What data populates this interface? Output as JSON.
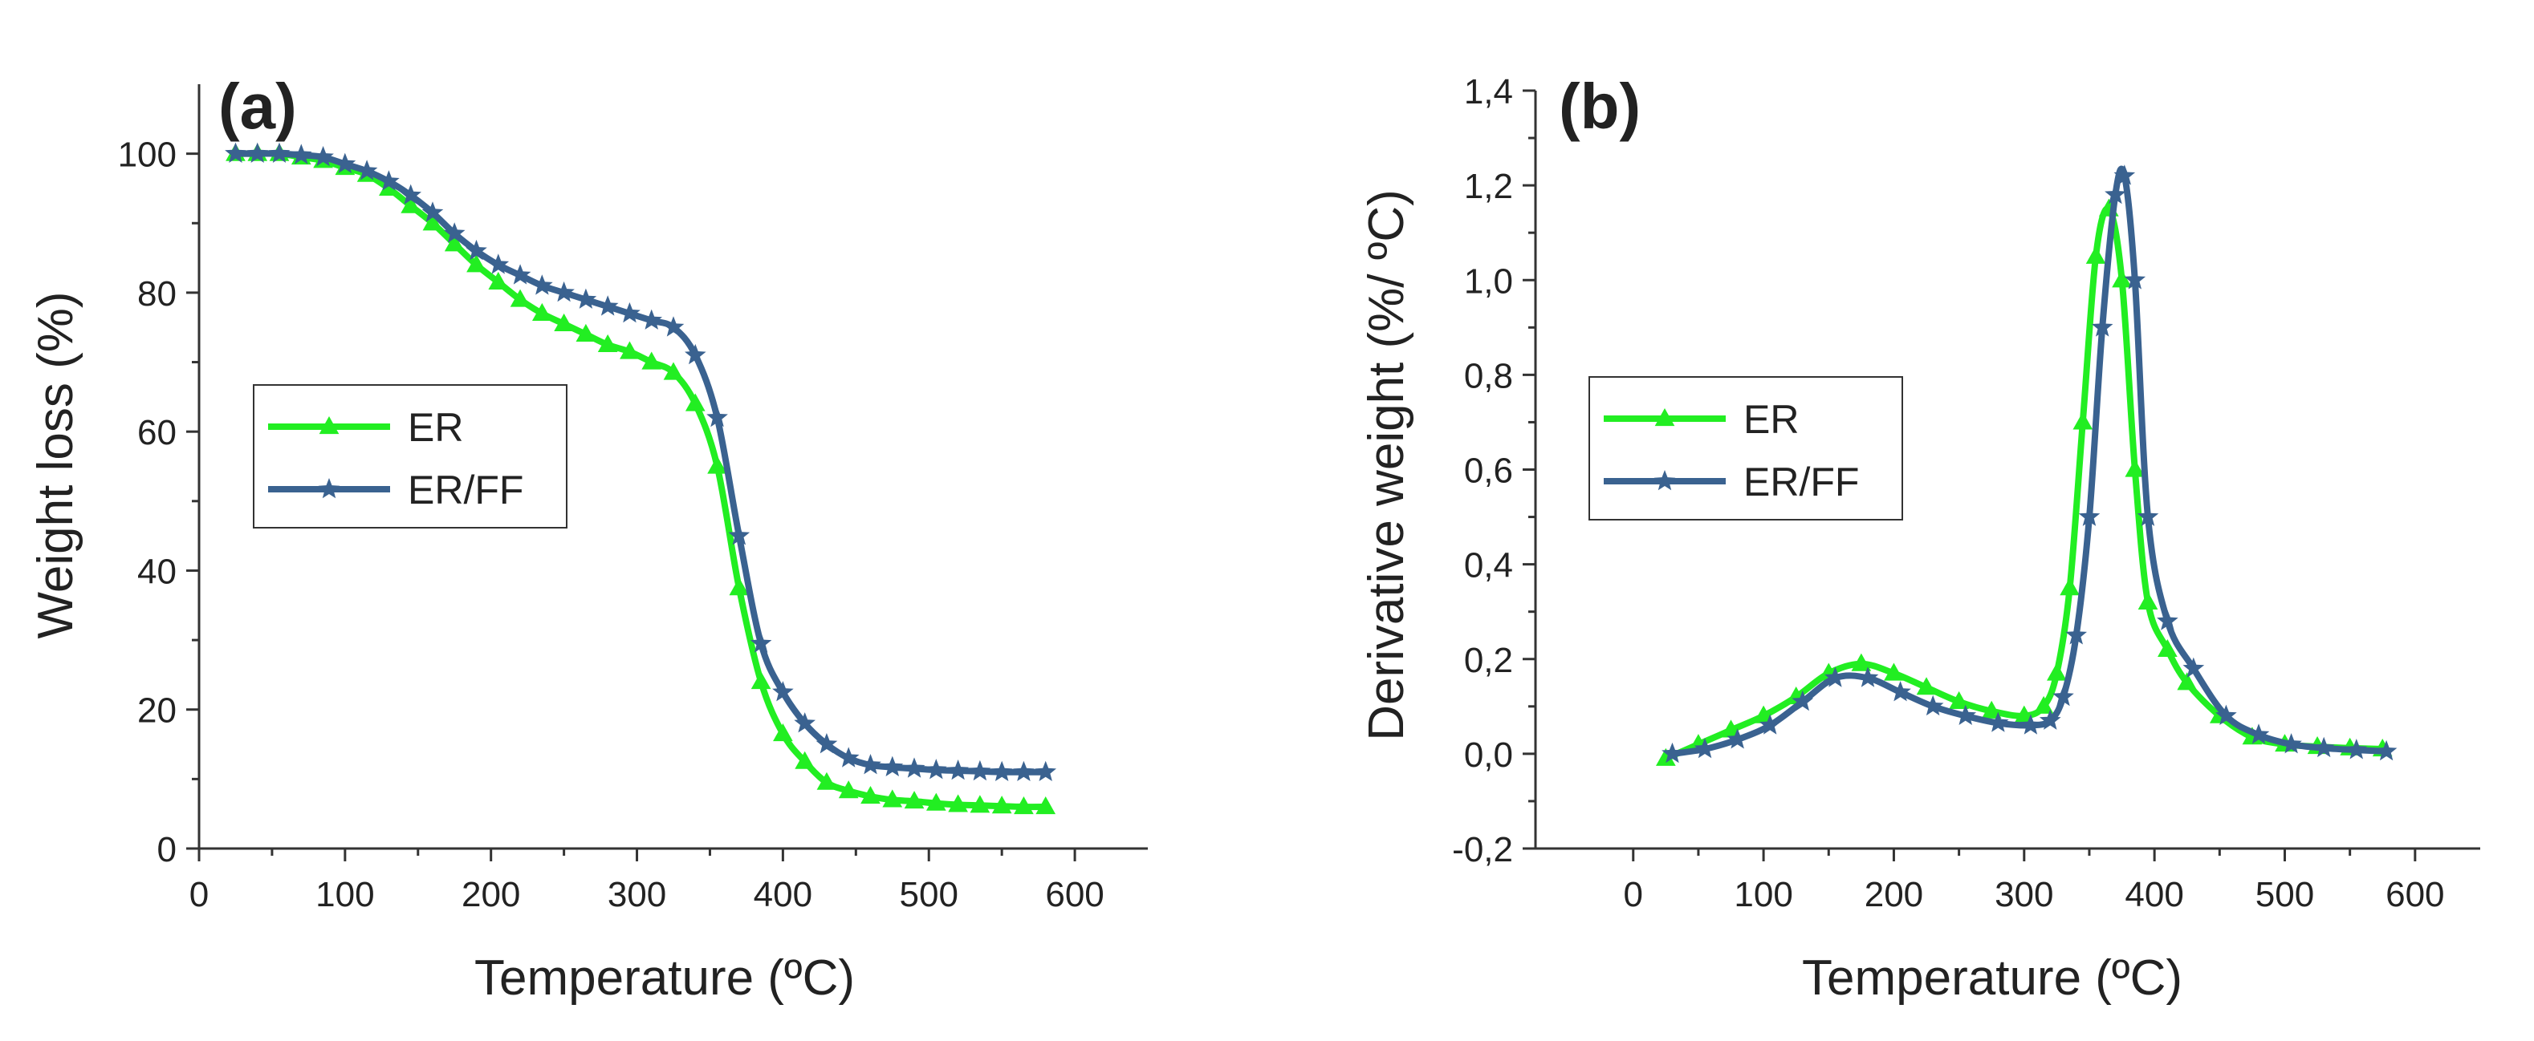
{
  "colors": {
    "ER": "#22ee22",
    "ER_FF": "#3a6290",
    "axis": "#333333"
  },
  "chart_data": [
    {
      "id": "a",
      "type": "line",
      "panel_label": "(a)",
      "xlabel": "Temperature (ºC)",
      "ylabel": "Weight loss (%)",
      "xlim": [
        0,
        650
      ],
      "ylim": [
        0,
        110
      ],
      "xticks": [
        0,
        100,
        200,
        300,
        400,
        500,
        600
      ],
      "yticks": [
        0,
        20,
        40,
        60,
        80,
        100
      ],
      "xtick_labels": [
        "0",
        "100",
        "200",
        "300",
        "400",
        "500",
        "600"
      ],
      "ytick_labels": [
        "0",
        "20",
        "40",
        "60",
        "80",
        "100"
      ],
      "legend_position": "center-left",
      "series": [
        {
          "name": "ER",
          "marker": "triangle",
          "color": "#22ee22",
          "x": [
            25,
            40,
            55,
            70,
            85,
            100,
            115,
            130,
            145,
            160,
            175,
            190,
            205,
            220,
            235,
            250,
            265,
            280,
            295,
            310,
            325,
            340,
            355,
            370,
            385,
            400,
            415,
            430,
            445,
            460,
            475,
            490,
            505,
            520,
            535,
            550,
            565,
            580
          ],
          "y": [
            100,
            100,
            100,
            99.5,
            99,
            98,
            97,
            95,
            92.5,
            90,
            87,
            84,
            81.5,
            79,
            77,
            75.5,
            74,
            72.5,
            71.5,
            70,
            68.5,
            64,
            55,
            37.5,
            24,
            16.5,
            12.5,
            9.5,
            8.3,
            7.5,
            7,
            6.8,
            6.5,
            6.3,
            6.2,
            6.1,
            6,
            6
          ]
        },
        {
          "name": "ER/FF",
          "marker": "star",
          "color": "#3a6290",
          "x": [
            25,
            40,
            55,
            70,
            85,
            100,
            115,
            130,
            145,
            160,
            175,
            190,
            205,
            220,
            235,
            250,
            265,
            280,
            295,
            310,
            325,
            340,
            355,
            370,
            385,
            400,
            415,
            430,
            445,
            460,
            475,
            490,
            505,
            520,
            535,
            550,
            565,
            580
          ],
          "y": [
            100,
            100,
            100,
            99.8,
            99.5,
            98.5,
            97.5,
            96,
            94,
            91.5,
            88.5,
            86,
            84,
            82.5,
            81,
            80,
            79,
            78,
            77,
            76,
            75,
            71,
            62,
            45,
            29.5,
            22.5,
            18,
            15,
            13,
            12,
            11.7,
            11.5,
            11.3,
            11.2,
            11.1,
            11,
            11,
            11
          ]
        }
      ]
    },
    {
      "id": "b",
      "type": "line",
      "panel_label": "(b)",
      "xlabel": "Temperature (ºC)",
      "ylabel": "Derivative weight (%/ ºC)",
      "xlim": [
        -75,
        650
      ],
      "ylim": [
        -0.2,
        1.4
      ],
      "xticks": [
        0,
        100,
        200,
        300,
        400,
        500,
        600
      ],
      "yticks": [
        -0.2,
        0,
        0.2,
        0.4,
        0.6,
        0.8,
        1.0,
        1.2,
        1.4
      ],
      "xtick_labels": [
        "0",
        "100",
        "200",
        "300",
        "400",
        "500",
        "600"
      ],
      "ytick_labels": [
        "-0,2",
        "0,0",
        "0,2",
        "0,4",
        "0,6",
        "0,8",
        "1,0",
        "1,2",
        "1,4"
      ],
      "legend_position": "center-left",
      "series": [
        {
          "name": "ER",
          "marker": "triangle",
          "color": "#22ee22",
          "x": [
            25,
            50,
            75,
            100,
            125,
            150,
            175,
            200,
            225,
            250,
            275,
            300,
            315,
            325,
            335,
            345,
            355,
            365,
            375,
            385,
            395,
            410,
            425,
            450,
            475,
            500,
            525,
            550,
            575
          ],
          "y": [
            -0.01,
            0.02,
            0.05,
            0.08,
            0.12,
            0.17,
            0.19,
            0.17,
            0.14,
            0.11,
            0.09,
            0.08,
            0.1,
            0.17,
            0.35,
            0.7,
            1.05,
            1.15,
            1.0,
            0.6,
            0.32,
            0.22,
            0.15,
            0.08,
            0.035,
            0.02,
            0.015,
            0.012,
            0.01
          ]
        },
        {
          "name": "ER/FF",
          "marker": "star",
          "color": "#3a6290",
          "x": [
            30,
            55,
            80,
            105,
            130,
            155,
            180,
            205,
            230,
            255,
            280,
            305,
            320,
            330,
            340,
            350,
            360,
            370,
            377,
            385,
            395,
            410,
            430,
            455,
            480,
            505,
            530,
            555,
            578
          ],
          "y": [
            0.0,
            0.01,
            0.03,
            0.06,
            0.11,
            0.16,
            0.16,
            0.13,
            0.1,
            0.08,
            0.065,
            0.06,
            0.07,
            0.12,
            0.25,
            0.5,
            0.9,
            1.18,
            1.22,
            1.0,
            0.5,
            0.28,
            0.18,
            0.08,
            0.04,
            0.02,
            0.012,
            0.008,
            0.005
          ]
        }
      ]
    }
  ]
}
